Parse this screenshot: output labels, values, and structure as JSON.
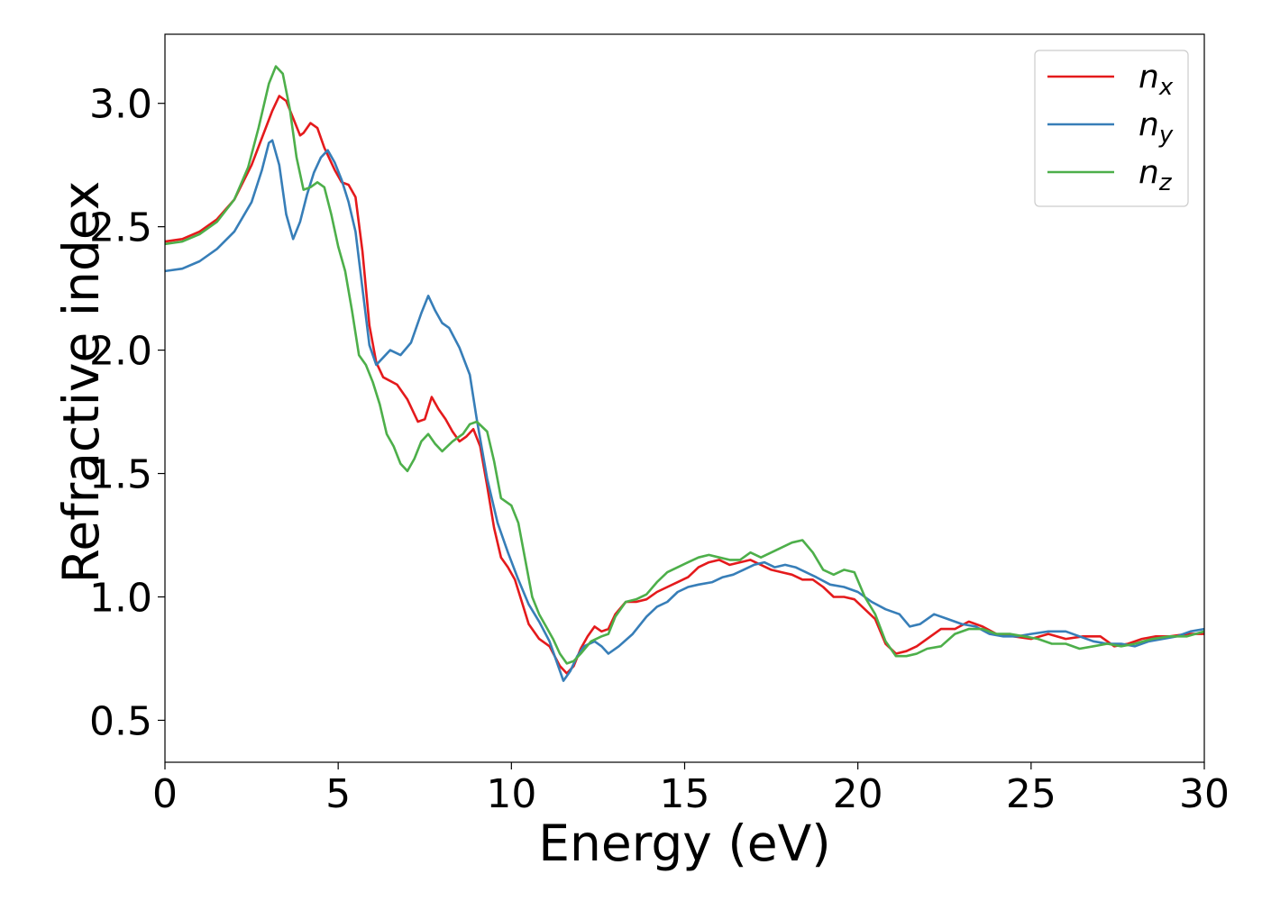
{
  "chart_data": {
    "type": "line",
    "title": "",
    "xlabel": "Energy (eV)",
    "ylabel": "Refractive index",
    "xlim": [
      0,
      30
    ],
    "ylim": [
      0.33,
      3.28
    ],
    "xticks": [
      0,
      5,
      10,
      15,
      20,
      25,
      30
    ],
    "xtick_labels": [
      "0",
      "5",
      "10",
      "15",
      "20",
      "25",
      "30"
    ],
    "yticks": [
      0.5,
      1.0,
      1.5,
      2.0,
      2.5,
      3.0
    ],
    "ytick_labels": [
      "0.5",
      "1.0",
      "1.5",
      "2.0",
      "2.5",
      "3.0"
    ],
    "grid": false,
    "legend": {
      "position": "top-right",
      "entries": [
        {
          "base": "n",
          "sub": "x",
          "color": "#e41a1c"
        },
        {
          "base": "n",
          "sub": "y",
          "color": "#377eb8"
        },
        {
          "base": "n",
          "sub": "z",
          "color": "#4daf4a"
        }
      ]
    },
    "series": [
      {
        "name": "n_x",
        "color": "#e41a1c",
        "points": [
          [
            0,
            2.44
          ],
          [
            0.5,
            2.45
          ],
          [
            1.0,
            2.48
          ],
          [
            1.5,
            2.53
          ],
          [
            2.0,
            2.61
          ],
          [
            2.5,
            2.75
          ],
          [
            2.8,
            2.86
          ],
          [
            3.1,
            2.97
          ],
          [
            3.3,
            3.03
          ],
          [
            3.5,
            3.01
          ],
          [
            3.7,
            2.94
          ],
          [
            3.9,
            2.87
          ],
          [
            4.0,
            2.88
          ],
          [
            4.2,
            2.92
          ],
          [
            4.4,
            2.9
          ],
          [
            4.6,
            2.82
          ],
          [
            4.9,
            2.73
          ],
          [
            5.1,
            2.68
          ],
          [
            5.3,
            2.67
          ],
          [
            5.5,
            2.62
          ],
          [
            5.7,
            2.4
          ],
          [
            5.9,
            2.1
          ],
          [
            6.1,
            1.95
          ],
          [
            6.3,
            1.89
          ],
          [
            6.7,
            1.86
          ],
          [
            7.0,
            1.8
          ],
          [
            7.3,
            1.71
          ],
          [
            7.5,
            1.72
          ],
          [
            7.7,
            1.81
          ],
          [
            7.9,
            1.76
          ],
          [
            8.1,
            1.72
          ],
          [
            8.3,
            1.67
          ],
          [
            8.5,
            1.63
          ],
          [
            8.7,
            1.65
          ],
          [
            8.9,
            1.68
          ],
          [
            9.1,
            1.61
          ],
          [
            9.3,
            1.45
          ],
          [
            9.5,
            1.28
          ],
          [
            9.7,
            1.16
          ],
          [
            9.9,
            1.12
          ],
          [
            10.1,
            1.07
          ],
          [
            10.3,
            0.98
          ],
          [
            10.5,
            0.89
          ],
          [
            10.8,
            0.83
          ],
          [
            11.1,
            0.8
          ],
          [
            11.4,
            0.72
          ],
          [
            11.6,
            0.69
          ],
          [
            11.8,
            0.72
          ],
          [
            12.0,
            0.79
          ],
          [
            12.2,
            0.84
          ],
          [
            12.4,
            0.88
          ],
          [
            12.6,
            0.86
          ],
          [
            12.8,
            0.87
          ],
          [
            13.0,
            0.93
          ],
          [
            13.3,
            0.98
          ],
          [
            13.6,
            0.98
          ],
          [
            13.9,
            0.99
          ],
          [
            14.2,
            1.02
          ],
          [
            14.5,
            1.04
          ],
          [
            14.8,
            1.06
          ],
          [
            15.1,
            1.08
          ],
          [
            15.4,
            1.12
          ],
          [
            15.7,
            1.14
          ],
          [
            16.0,
            1.15
          ],
          [
            16.3,
            1.13
          ],
          [
            16.6,
            1.14
          ],
          [
            16.9,
            1.15
          ],
          [
            17.2,
            1.13
          ],
          [
            17.5,
            1.11
          ],
          [
            17.8,
            1.1
          ],
          [
            18.1,
            1.09
          ],
          [
            18.4,
            1.07
          ],
          [
            18.7,
            1.07
          ],
          [
            19.0,
            1.04
          ],
          [
            19.3,
            1.0
          ],
          [
            19.6,
            1.0
          ],
          [
            19.9,
            0.99
          ],
          [
            20.2,
            0.95
          ],
          [
            20.5,
            0.91
          ],
          [
            20.8,
            0.81
          ],
          [
            21.1,
            0.77
          ],
          [
            21.4,
            0.78
          ],
          [
            21.7,
            0.8
          ],
          [
            22.0,
            0.83
          ],
          [
            22.4,
            0.87
          ],
          [
            22.8,
            0.87
          ],
          [
            23.2,
            0.9
          ],
          [
            23.6,
            0.88
          ],
          [
            24.0,
            0.85
          ],
          [
            24.5,
            0.84
          ],
          [
            25.0,
            0.83
          ],
          [
            25.5,
            0.85
          ],
          [
            26.0,
            0.83
          ],
          [
            26.5,
            0.84
          ],
          [
            27.0,
            0.84
          ],
          [
            27.4,
            0.8
          ],
          [
            27.8,
            0.81
          ],
          [
            28.2,
            0.83
          ],
          [
            28.6,
            0.84
          ],
          [
            29.0,
            0.84
          ],
          [
            29.5,
            0.85
          ],
          [
            30.0,
            0.85
          ]
        ]
      },
      {
        "name": "n_y",
        "color": "#377eb8",
        "points": [
          [
            0,
            2.32
          ],
          [
            0.5,
            2.33
          ],
          [
            1.0,
            2.36
          ],
          [
            1.5,
            2.41
          ],
          [
            2.0,
            2.48
          ],
          [
            2.5,
            2.6
          ],
          [
            2.8,
            2.73
          ],
          [
            3.0,
            2.84
          ],
          [
            3.1,
            2.85
          ],
          [
            3.3,
            2.75
          ],
          [
            3.5,
            2.55
          ],
          [
            3.7,
            2.45
          ],
          [
            3.9,
            2.52
          ],
          [
            4.1,
            2.63
          ],
          [
            4.3,
            2.72
          ],
          [
            4.5,
            2.78
          ],
          [
            4.7,
            2.81
          ],
          [
            4.9,
            2.76
          ],
          [
            5.1,
            2.69
          ],
          [
            5.3,
            2.6
          ],
          [
            5.5,
            2.48
          ],
          [
            5.7,
            2.25
          ],
          [
            5.9,
            2.02
          ],
          [
            6.1,
            1.94
          ],
          [
            6.3,
            1.97
          ],
          [
            6.5,
            2.0
          ],
          [
            6.8,
            1.98
          ],
          [
            7.1,
            2.03
          ],
          [
            7.4,
            2.15
          ],
          [
            7.6,
            2.22
          ],
          [
            7.8,
            2.16
          ],
          [
            8.0,
            2.11
          ],
          [
            8.2,
            2.09
          ],
          [
            8.5,
            2.01
          ],
          [
            8.8,
            1.9
          ],
          [
            9.0,
            1.72
          ],
          [
            9.3,
            1.48
          ],
          [
            9.6,
            1.3
          ],
          [
            9.9,
            1.18
          ],
          [
            10.2,
            1.07
          ],
          [
            10.5,
            0.97
          ],
          [
            10.8,
            0.9
          ],
          [
            11.1,
            0.82
          ],
          [
            11.3,
            0.74
          ],
          [
            11.5,
            0.66
          ],
          [
            11.7,
            0.7
          ],
          [
            11.9,
            0.76
          ],
          [
            12.1,
            0.8
          ],
          [
            12.4,
            0.82
          ],
          [
            12.6,
            0.8
          ],
          [
            12.8,
            0.77
          ],
          [
            13.1,
            0.8
          ],
          [
            13.5,
            0.85
          ],
          [
            13.9,
            0.92
          ],
          [
            14.2,
            0.96
          ],
          [
            14.5,
            0.98
          ],
          [
            14.8,
            1.02
          ],
          [
            15.1,
            1.04
          ],
          [
            15.4,
            1.05
          ],
          [
            15.8,
            1.06
          ],
          [
            16.1,
            1.08
          ],
          [
            16.4,
            1.09
          ],
          [
            16.7,
            1.11
          ],
          [
            17.0,
            1.13
          ],
          [
            17.3,
            1.14
          ],
          [
            17.6,
            1.12
          ],
          [
            17.9,
            1.13
          ],
          [
            18.2,
            1.12
          ],
          [
            18.5,
            1.1
          ],
          [
            18.8,
            1.08
          ],
          [
            19.2,
            1.05
          ],
          [
            19.6,
            1.04
          ],
          [
            20.0,
            1.02
          ],
          [
            20.4,
            0.98
          ],
          [
            20.8,
            0.95
          ],
          [
            21.2,
            0.93
          ],
          [
            21.5,
            0.88
          ],
          [
            21.8,
            0.89
          ],
          [
            22.2,
            0.93
          ],
          [
            22.6,
            0.91
          ],
          [
            23.0,
            0.89
          ],
          [
            23.4,
            0.88
          ],
          [
            23.8,
            0.85
          ],
          [
            24.2,
            0.84
          ],
          [
            24.6,
            0.84
          ],
          [
            25.0,
            0.85
          ],
          [
            25.5,
            0.86
          ],
          [
            26.0,
            0.86
          ],
          [
            26.4,
            0.84
          ],
          [
            26.8,
            0.82
          ],
          [
            27.2,
            0.81
          ],
          [
            27.6,
            0.81
          ],
          [
            28.0,
            0.8
          ],
          [
            28.4,
            0.82
          ],
          [
            28.8,
            0.83
          ],
          [
            29.2,
            0.84
          ],
          [
            29.6,
            0.86
          ],
          [
            30.0,
            0.87
          ]
        ]
      },
      {
        "name": "n_z",
        "color": "#4daf4a",
        "points": [
          [
            0,
            2.43
          ],
          [
            0.5,
            2.44
          ],
          [
            1.0,
            2.47
          ],
          [
            1.5,
            2.52
          ],
          [
            2.0,
            2.61
          ],
          [
            2.4,
            2.74
          ],
          [
            2.7,
            2.9
          ],
          [
            3.0,
            3.08
          ],
          [
            3.2,
            3.15
          ],
          [
            3.4,
            3.12
          ],
          [
            3.6,
            2.98
          ],
          [
            3.8,
            2.78
          ],
          [
            4.0,
            2.65
          ],
          [
            4.2,
            2.66
          ],
          [
            4.4,
            2.68
          ],
          [
            4.6,
            2.66
          ],
          [
            4.8,
            2.55
          ],
          [
            5.0,
            2.42
          ],
          [
            5.2,
            2.32
          ],
          [
            5.4,
            2.16
          ],
          [
            5.6,
            1.98
          ],
          [
            5.8,
            1.94
          ],
          [
            6.0,
            1.87
          ],
          [
            6.2,
            1.78
          ],
          [
            6.4,
            1.66
          ],
          [
            6.6,
            1.61
          ],
          [
            6.8,
            1.54
          ],
          [
            7.0,
            1.51
          ],
          [
            7.2,
            1.56
          ],
          [
            7.4,
            1.63
          ],
          [
            7.6,
            1.66
          ],
          [
            7.8,
            1.62
          ],
          [
            8.0,
            1.59
          ],
          [
            8.3,
            1.63
          ],
          [
            8.6,
            1.66
          ],
          [
            8.8,
            1.7
          ],
          [
            9.0,
            1.71
          ],
          [
            9.3,
            1.67
          ],
          [
            9.5,
            1.55
          ],
          [
            9.7,
            1.4
          ],
          [
            10.0,
            1.37
          ],
          [
            10.2,
            1.3
          ],
          [
            10.4,
            1.15
          ],
          [
            10.6,
            1.0
          ],
          [
            10.8,
            0.93
          ],
          [
            11.0,
            0.88
          ],
          [
            11.2,
            0.83
          ],
          [
            11.4,
            0.77
          ],
          [
            11.6,
            0.73
          ],
          [
            11.8,
            0.74
          ],
          [
            12.0,
            0.77
          ],
          [
            12.3,
            0.82
          ],
          [
            12.6,
            0.84
          ],
          [
            12.8,
            0.85
          ],
          [
            13.0,
            0.92
          ],
          [
            13.3,
            0.98
          ],
          [
            13.6,
            0.99
          ],
          [
            13.9,
            1.01
          ],
          [
            14.2,
            1.06
          ],
          [
            14.5,
            1.1
          ],
          [
            14.8,
            1.12
          ],
          [
            15.1,
            1.14
          ],
          [
            15.4,
            1.16
          ],
          [
            15.7,
            1.17
          ],
          [
            16.0,
            1.16
          ],
          [
            16.3,
            1.15
          ],
          [
            16.6,
            1.15
          ],
          [
            16.9,
            1.18
          ],
          [
            17.2,
            1.16
          ],
          [
            17.5,
            1.18
          ],
          [
            17.8,
            1.2
          ],
          [
            18.1,
            1.22
          ],
          [
            18.4,
            1.23
          ],
          [
            18.7,
            1.18
          ],
          [
            19.0,
            1.11
          ],
          [
            19.3,
            1.09
          ],
          [
            19.6,
            1.11
          ],
          [
            19.9,
            1.1
          ],
          [
            20.2,
            1.0
          ],
          [
            20.5,
            0.93
          ],
          [
            20.8,
            0.82
          ],
          [
            21.1,
            0.76
          ],
          [
            21.4,
            0.76
          ],
          [
            21.7,
            0.77
          ],
          [
            22.0,
            0.79
          ],
          [
            22.4,
            0.8
          ],
          [
            22.8,
            0.85
          ],
          [
            23.2,
            0.87
          ],
          [
            23.6,
            0.87
          ],
          [
            24.0,
            0.85
          ],
          [
            24.4,
            0.85
          ],
          [
            24.8,
            0.84
          ],
          [
            25.2,
            0.83
          ],
          [
            25.6,
            0.81
          ],
          [
            26.0,
            0.81
          ],
          [
            26.4,
            0.79
          ],
          [
            26.8,
            0.8
          ],
          [
            27.2,
            0.81
          ],
          [
            27.6,
            0.8
          ],
          [
            28.0,
            0.81
          ],
          [
            28.5,
            0.83
          ],
          [
            29.0,
            0.84
          ],
          [
            29.5,
            0.84
          ],
          [
            30.0,
            0.86
          ]
        ]
      }
    ]
  }
}
